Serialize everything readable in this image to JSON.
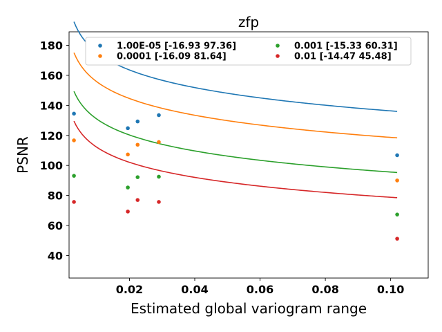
{
  "chart_data": {
    "type": "scatter",
    "title": "zfp",
    "xlabel": "Estimated global variogram range",
    "ylabel": "PSNR",
    "xlim": [
      0.0015,
      0.1115
    ],
    "ylim": [
      25,
      189
    ],
    "xticks": [
      0.02,
      0.04,
      0.06,
      0.08,
      0.1
    ],
    "xtick_labels": [
      "0.02",
      "0.04",
      "0.06",
      "0.08",
      "0.10"
    ],
    "yticks": [
      40,
      60,
      80,
      100,
      120,
      140,
      160,
      180
    ],
    "ytick_labels": [
      "40",
      "60",
      "80",
      "100",
      "120",
      "140",
      "160",
      "180"
    ],
    "grid": false,
    "legend_location": "top",
    "legend_columns": 2,
    "fit_x_range": [
      0.003,
      0.102
    ],
    "series": [
      {
        "name": "1.00E-05 [-16.93  97.36]",
        "color": "#1f77b4",
        "fit": {
          "slope": -16.93,
          "intercept": 97.36
        },
        "points": [
          {
            "x": 0.003,
            "y": 134.5
          },
          {
            "x": 0.0195,
            "y": 124.8
          },
          {
            "x": 0.0225,
            "y": 129.3
          },
          {
            "x": 0.029,
            "y": 133.5
          },
          {
            "x": 0.102,
            "y": 106.8
          }
        ]
      },
      {
        "name": "0.0001 [-16.09  81.64]",
        "color": "#ff7f0e",
        "fit": {
          "slope": -16.09,
          "intercept": 81.64
        },
        "points": [
          {
            "x": 0.003,
            "y": 116.7
          },
          {
            "x": 0.0195,
            "y": 107.3
          },
          {
            "x": 0.0225,
            "y": 113.8
          },
          {
            "x": 0.029,
            "y": 115.6
          },
          {
            "x": 0.102,
            "y": 90.0
          }
        ]
      },
      {
        "name": "0.001 [-15.33  60.31]",
        "color": "#2ca02c",
        "fit": {
          "slope": -15.33,
          "intercept": 60.31
        },
        "points": [
          {
            "x": 0.003,
            "y": 93.1
          },
          {
            "x": 0.0195,
            "y": 85.3
          },
          {
            "x": 0.0225,
            "y": 92.2
          },
          {
            "x": 0.029,
            "y": 92.5
          },
          {
            "x": 0.102,
            "y": 67.3
          }
        ]
      },
      {
        "name": "0.01 [-14.47  45.48]",
        "color": "#d62728",
        "fit": {
          "slope": -14.47,
          "intercept": 45.48
        },
        "points": [
          {
            "x": 0.003,
            "y": 75.7
          },
          {
            "x": 0.0195,
            "y": 69.3
          },
          {
            "x": 0.0225,
            "y": 77.0
          },
          {
            "x": 0.029,
            "y": 75.7
          },
          {
            "x": 0.102,
            "y": 51.2
          }
        ]
      }
    ]
  }
}
